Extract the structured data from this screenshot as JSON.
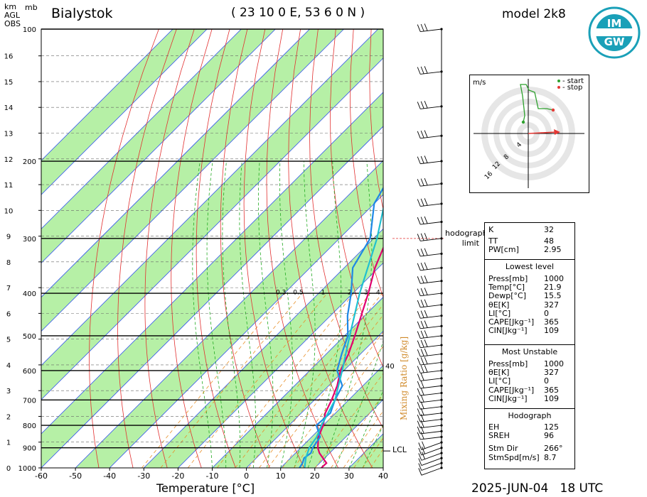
{
  "header": {
    "station": "Bialystok",
    "coords": "( 23 10 0 E, 53 6 0 N )",
    "model": "model 2k8",
    "date": "2025-JUN-04",
    "time": "18 UTC",
    "km_label_lines": [
      "km",
      "AGL",
      "OBS"
    ],
    "mb_label": "mb",
    "logo_text": "IMGW"
  },
  "chart_data": {
    "type": "line",
    "title": "Bialystok",
    "xlabel": "Temperature [°C]",
    "secondary_label": "Mixing Ratio [g/kg]",
    "xlim": [
      -60,
      40
    ],
    "ylim_hpa": [
      1000,
      100
    ],
    "x_ticks": [
      -60,
      -50,
      -40,
      -30,
      -20,
      -10,
      0,
      10,
      20,
      30,
      40
    ],
    "p_ticks": [
      100,
      200,
      300,
      400,
      500,
      600,
      700,
      800,
      900,
      1000
    ],
    "km_ticks": [
      0,
      1,
      2,
      3,
      4,
      5,
      6,
      7,
      8,
      9,
      10,
      11,
      12,
      13,
      14,
      15,
      16
    ],
    "mixing_ratio_labels": [
      "0.3",
      "0.5",
      "1",
      "2",
      "3",
      "4",
      "5",
      "6",
      "8",
      "10",
      "15",
      "20",
      "25",
      "30",
      "35",
      "40"
    ],
    "lcl_label": "LCL",
    "lcl_hpa": 915,
    "hodograph_limit_label": [
      "hodograph",
      "limit"
    ],
    "hodograph_limit_hpa": 300,
    "series": [
      {
        "color": "#e0006f",
        "values": [
          [
            1000,
            21.9
          ],
          [
            975,
            22.0
          ],
          [
            950,
            19.5
          ],
          [
            925,
            17.0
          ],
          [
            900,
            15.0
          ],
          [
            850,
            12.0
          ],
          [
            800,
            10.0
          ],
          [
            750,
            7.0
          ],
          [
            700,
            5.0
          ],
          [
            650,
            2.5
          ],
          [
            600,
            -1.0
          ],
          [
            550,
            -3.5
          ],
          [
            500,
            -7.0
          ],
          [
            450,
            -11.0
          ],
          [
            400,
            -15.5
          ],
          [
            350,
            -21.0
          ],
          [
            300,
            -26.0
          ],
          [
            250,
            -34.0
          ],
          [
            220,
            -38.0
          ],
          [
            200,
            -38.5
          ],
          [
            180,
            -37.0
          ],
          [
            150,
            -32.5
          ],
          [
            125,
            -29.0
          ],
          [
            110,
            -28.0
          ],
          [
            100,
            -27.0
          ]
        ]
      },
      {
        "color": "#1e88e5",
        "values": [
          [
            1000,
            15.5
          ],
          [
            975,
            15.0
          ],
          [
            950,
            14.0
          ],
          [
            925,
            14.5
          ],
          [
            900,
            13.5
          ],
          [
            850,
            12.5
          ],
          [
            800,
            8.0
          ],
          [
            750,
            8.5
          ],
          [
            700,
            6.0
          ],
          [
            650,
            4.0
          ],
          [
            600,
            -2.0
          ],
          [
            550,
            -5.5
          ],
          [
            500,
            -9.0
          ],
          [
            450,
            -15.0
          ],
          [
            400,
            -20.5
          ],
          [
            350,
            -27.5
          ],
          [
            300,
            -31.0
          ],
          [
            250,
            -40.0
          ],
          [
            220,
            -43.0
          ],
          [
            200,
            -45.0
          ],
          [
            180,
            -50.0
          ],
          [
            150,
            -59.0
          ],
          [
            125,
            -64.0
          ],
          [
            110,
            -69.0
          ],
          [
            100,
            -75.0
          ]
        ]
      },
      {
        "color": "#20c0d0",
        "values": [
          [
            1000,
            17.0
          ],
          [
            950,
            14.5
          ],
          [
            900,
            12.5
          ],
          [
            850,
            11.5
          ],
          [
            800,
            9.5
          ],
          [
            700,
            6.0
          ],
          [
            600,
            -0.5
          ],
          [
            500,
            -8.5
          ],
          [
            400,
            -18.0
          ],
          [
            300,
            -29.0
          ],
          [
            250,
            -37.0
          ],
          [
            200,
            -48.0
          ],
          [
            150,
            -63.0
          ],
          [
            120,
            -73.0
          ],
          [
            100,
            -83.0
          ]
        ]
      }
    ],
    "wind_barbs_hpa": [
      1000,
      975,
      950,
      925,
      900,
      875,
      850,
      825,
      800,
      775,
      750,
      725,
      700,
      675,
      650,
      625,
      600,
      575,
      550,
      525,
      500,
      475,
      450,
      425,
      400,
      375,
      350,
      325,
      300,
      275,
      250,
      225,
      200,
      175,
      150,
      125,
      100
    ]
  },
  "hodograph": {
    "unit_label": "m/s",
    "legend_start": "- start",
    "legend_stop": "- stop",
    "ring_labels": [
      "4",
      "8",
      "12",
      "16"
    ],
    "start_color": "#2ea12e",
    "stop_color": "#e53935"
  },
  "panels": {
    "indices": [
      {
        "name": "K",
        "value": "32"
      },
      {
        "name": "TT",
        "value": "48"
      },
      {
        "name": "PW[cm]",
        "value": "2.95"
      }
    ],
    "lowest_title": "Lowest level",
    "lowest": [
      {
        "name": "Press[mb]",
        "value": "1000"
      },
      {
        "name": "Temp[°C]",
        "value": "21.9"
      },
      {
        "name": "Dewp[°C]",
        "value": "15.5"
      },
      {
        "name": "θE[K]",
        "value": "327"
      },
      {
        "name": "LI[°C]",
        "value": "0"
      },
      {
        "name": "CAPE[Jkg⁻¹]",
        "value": "365"
      },
      {
        "name": "CIN[Jkg⁻¹]",
        "value": "109"
      }
    ],
    "unstable_title": "Most Unstable",
    "unstable": [
      {
        "name": "Press[mb]",
        "value": "1000"
      },
      {
        "name": "θE[K]",
        "value": "327"
      },
      {
        "name": "LI[°C]",
        "value": "0"
      },
      {
        "name": "CAPE[Jkg⁻¹]",
        "value": "365"
      },
      {
        "name": "CIN[Jkg⁻¹]",
        "value": "109"
      }
    ],
    "hodo_title": "Hodograph",
    "hodo": [
      {
        "name": "EH",
        "value": "125"
      },
      {
        "name": "SREH",
        "value": "96"
      },
      {
        "name": "Stm Dir",
        "value": "266°"
      },
      {
        "name": "StmSpd[m/s]",
        "value": "8.7"
      }
    ]
  }
}
